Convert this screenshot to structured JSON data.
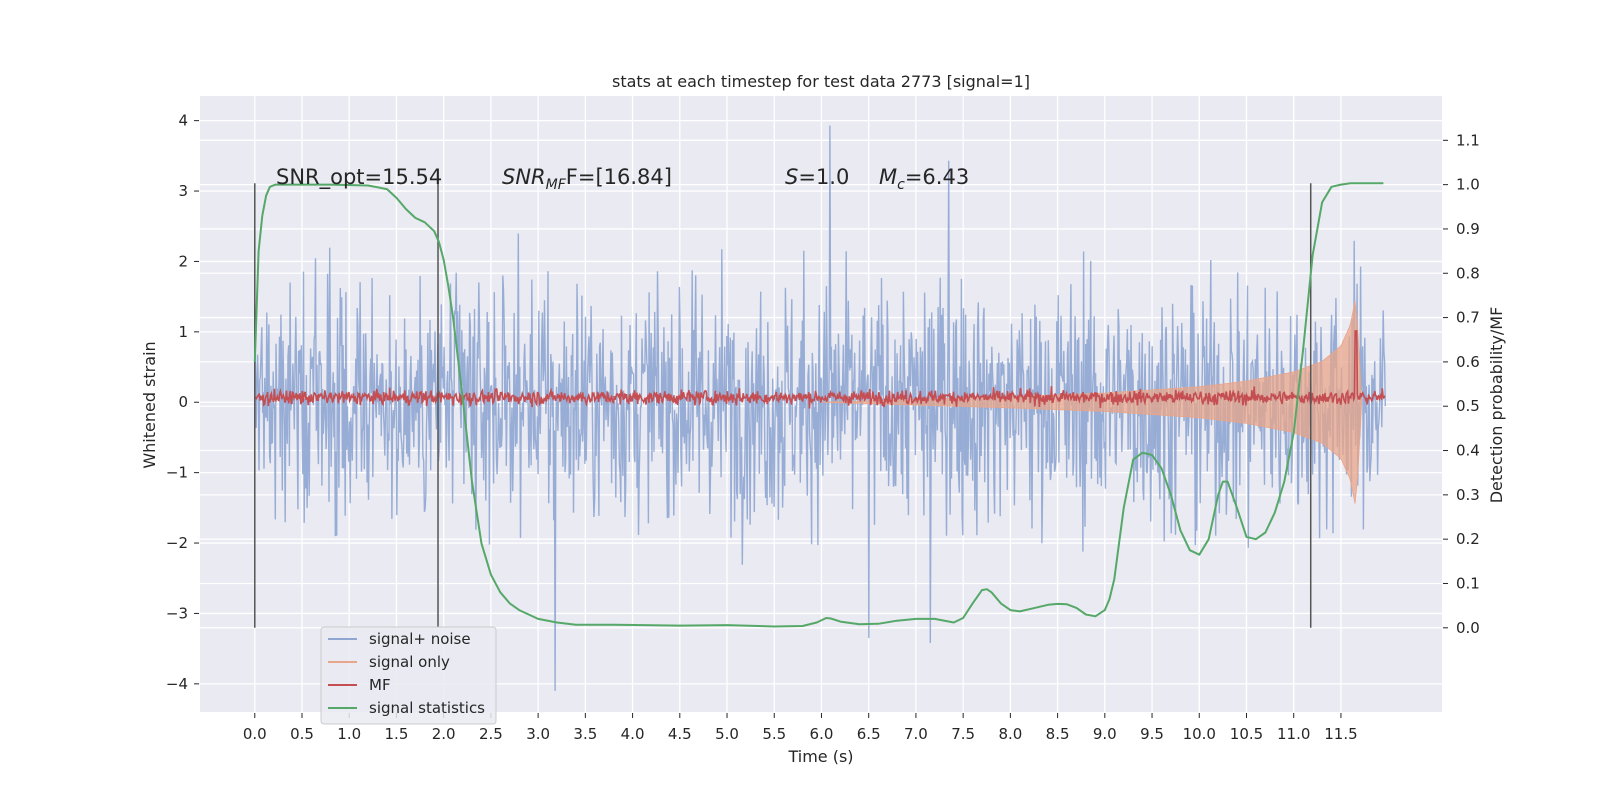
{
  "chart_data": {
    "type": "line",
    "title": "stats at each timestep for test data 2773 [signal=1]",
    "xlabel": "Time (s)",
    "ylabel": "Whitened strain",
    "ylabel_right": "Detection probability/MF",
    "xlim": [
      -0.58,
      12.57
    ],
    "ylim": [
      -4.4,
      4.35
    ],
    "ylim_right": [
      -0.19,
      1.2
    ],
    "x_ticks": [
      "0.0",
      "0.5",
      "1.0",
      "1.5",
      "2.0",
      "2.5",
      "3.0",
      "3.5",
      "4.0",
      "4.5",
      "5.0",
      "5.5",
      "6.0",
      "6.5",
      "7.0",
      "7.5",
      "8.0",
      "8.5",
      "9.0",
      "9.5",
      "10.0",
      "10.5",
      "11.0",
      "11.5"
    ],
    "y_ticks": [
      "4",
      "3",
      "2",
      "1",
      "0",
      "−1",
      "−2",
      "−3",
      "−4"
    ],
    "y_ticks_right": [
      "1.1",
      "1.0",
      "0.9",
      "0.8",
      "0.7",
      "0.6",
      "0.5",
      "0.4",
      "0.3",
      "0.2",
      "0.1",
      "0.0"
    ],
    "grid": true,
    "legend_position": "lower-left",
    "annotations": {
      "snr_opt": "SNR_opt=15.54",
      "snr_mf_name": "SNR",
      "snr_mf_sub": "MF",
      "snr_mf_suffix": "F=[16.84]",
      "s_name": "S",
      "s_value": "=1.0",
      "mc_name": "M",
      "mc_sub": "c",
      "mc_value": "=6.43"
    },
    "vlines_x": [
      0.0,
      1.94,
      11.18
    ],
    "series": [
      {
        "name": "signal+ noise",
        "color": "#8fa6d2",
        "noise_std": 0.85,
        "x_range": [
          0.0,
          11.97
        ],
        "peaks": [
          [
            6.09,
            3.93
          ],
          [
            7.35,
            3.43
          ],
          [
            3.18,
            -4.1
          ],
          [
            6.5,
            -3.35
          ],
          [
            7.15,
            -3.42
          ]
        ]
      },
      {
        "name": "signal only",
        "color": "#e8a589",
        "envelope_x": [
          8.0,
          9.0,
          10.0,
          10.5,
          11.0,
          11.3,
          11.5,
          11.6,
          11.65,
          11.68,
          11.72
        ],
        "envelope_amp": [
          0.08,
          0.13,
          0.22,
          0.3,
          0.43,
          0.58,
          0.8,
          1.1,
          1.45,
          1.0,
          0.0
        ]
      },
      {
        "name": "MF",
        "color": "#c44e52",
        "x_range": [
          0.0,
          11.97
        ],
        "baseline_right": 0.52,
        "peak": [
          11.66,
          0.67
        ]
      },
      {
        "name": "signal statistics",
        "color": "#55a868",
        "x": [
          0.0,
          0.04,
          0.08,
          0.12,
          0.16,
          0.22,
          0.3,
          0.5,
          0.8,
          1.2,
          1.4,
          1.5,
          1.6,
          1.7,
          1.8,
          1.9,
          1.95,
          2.0,
          2.05,
          2.1,
          2.2,
          2.3,
          2.4,
          2.5,
          2.6,
          2.7,
          2.8,
          2.9,
          3.0,
          3.2,
          3.4,
          3.8,
          4.5,
          5.0,
          5.5,
          5.8,
          5.95,
          6.05,
          6.1,
          6.2,
          6.4,
          6.6,
          6.8,
          7.0,
          7.2,
          7.4,
          7.5,
          7.6,
          7.7,
          7.75,
          7.8,
          7.9,
          8.0,
          8.1,
          8.2,
          8.4,
          8.5,
          8.6,
          8.7,
          8.8,
          8.9,
          9.0,
          9.05,
          9.1,
          9.2,
          9.3,
          9.4,
          9.5,
          9.6,
          9.7,
          9.8,
          9.9,
          10.0,
          10.1,
          10.2,
          10.25,
          10.3,
          10.4,
          10.5,
          10.6,
          10.7,
          10.8,
          10.9,
          11.0,
          11.1,
          11.2,
          11.3,
          11.4,
          11.5,
          11.6,
          11.8,
          11.95
        ],
        "values": [
          0.6,
          0.85,
          0.93,
          0.975,
          0.995,
          1.0,
          1.0,
          1.0,
          1.0,
          0.998,
          0.99,
          0.97,
          0.945,
          0.925,
          0.915,
          0.895,
          0.87,
          0.83,
          0.77,
          0.7,
          0.52,
          0.33,
          0.19,
          0.12,
          0.08,
          0.055,
          0.04,
          0.03,
          0.02,
          0.012,
          0.007,
          0.007,
          0.005,
          0.006,
          0.003,
          0.004,
          0.012,
          0.022,
          0.021,
          0.014,
          0.008,
          0.009,
          0.016,
          0.02,
          0.02,
          0.012,
          0.022,
          0.055,
          0.085,
          0.087,
          0.08,
          0.055,
          0.04,
          0.037,
          0.042,
          0.052,
          0.054,
          0.053,
          0.045,
          0.03,
          0.026,
          0.04,
          0.065,
          0.11,
          0.27,
          0.38,
          0.395,
          0.39,
          0.36,
          0.3,
          0.22,
          0.175,
          0.165,
          0.2,
          0.3,
          0.33,
          0.33,
          0.27,
          0.205,
          0.2,
          0.215,
          0.26,
          0.33,
          0.44,
          0.63,
          0.84,
          0.96,
          0.995,
          1.0,
          1.003,
          1.003,
          1.003
        ]
      }
    ]
  }
}
